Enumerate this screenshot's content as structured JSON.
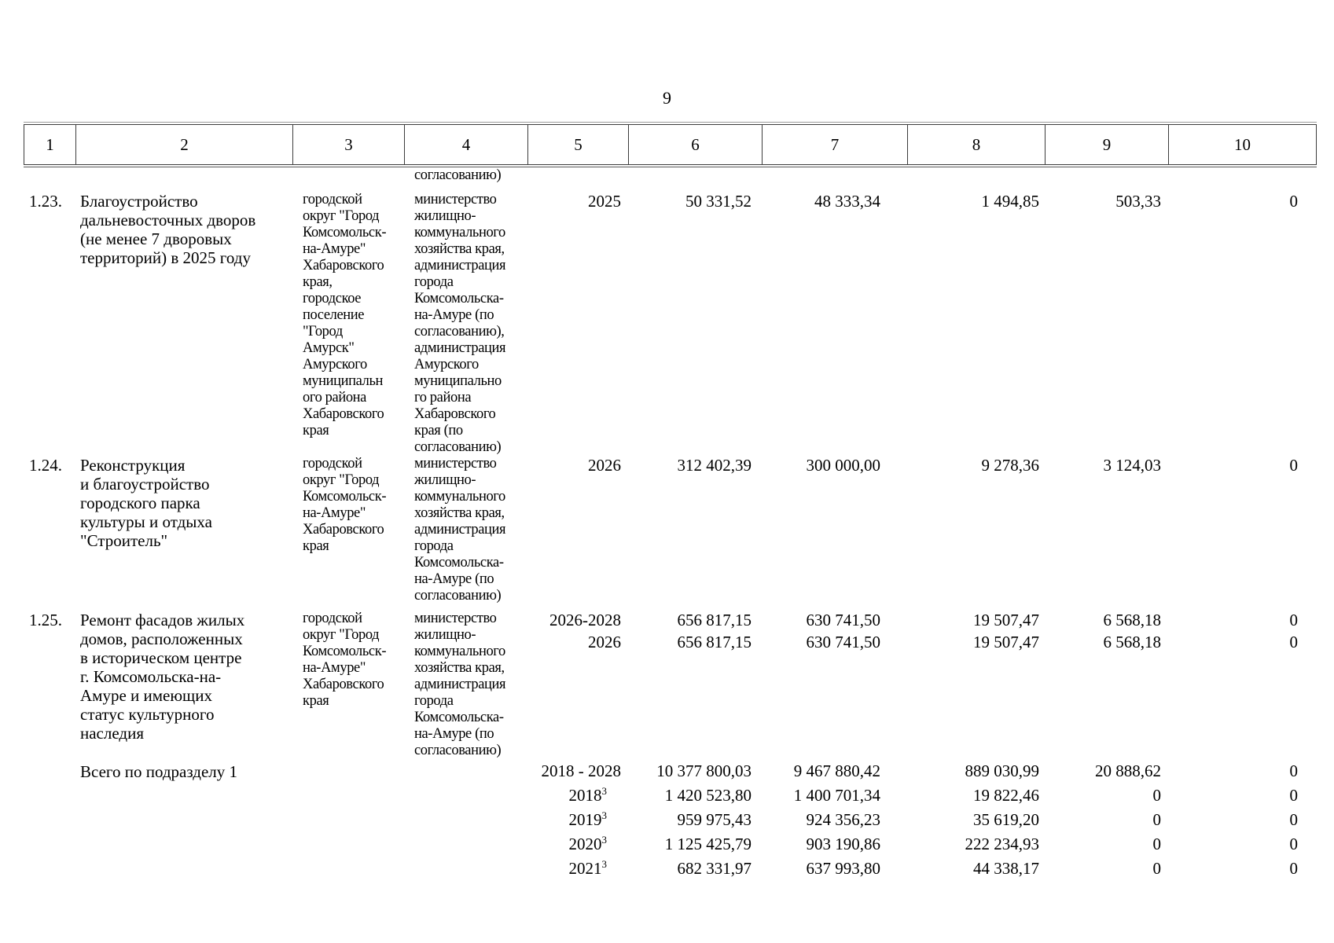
{
  "page_number": "9",
  "table": {
    "header_cols": [
      "1",
      "2",
      "3",
      "4",
      "5",
      "6",
      "7",
      "8",
      "9",
      "10"
    ],
    "continuation_text": "согласованию)",
    "rows": [
      {
        "num": "1.23.",
        "name": "Благоустройство\nдальневосточных дворов\n(не менее 7 дворовых\nтерриторий) в 2025 году",
        "territory": "городской\nокруг \"Город\nКомсомольск-\nна-Амуре\"\nХабаровского\nкрая,\nгородское\nпоселение\n\"Город\nАмурск\"\nАмурского\nмуниципальн\nого района\nХабаровского\nкрая",
        "executors": "министерство\nжилищно-\nкоммунального\nхозяйства края,\nадминистрация\nгорода\nКомсомольска-\nна-Амуре (по\nсогласованию),\nадминистрация\nАмурского\nмуниципально\nго района\nХабаровского\nкрая (по\nсогласованию)",
        "periods": [
          {
            "years": "2025",
            "total": "50 331,52",
            "federal": "48 333,34",
            "regional": "1 494,85",
            "local": "503,33",
            "other": "0"
          }
        ]
      },
      {
        "num": "1.24.",
        "name": "Реконструкция\nи благоустройство\nгородского парка\nкультуры и отдыха\n\"Строитель\"",
        "territory": "городской\nокруг \"Город\nКомсомольск-\nна-Амуре\"\nХабаровского\nкрая",
        "executors": "министерство\nжилищно-\nкоммунального\nхозяйства края,\nадминистрация\nгорода\nКомсомольска-\nна-Амуре (по\nсогласованию)",
        "periods": [
          {
            "years": "2026",
            "total": "312 402,39",
            "federal": "300 000,00",
            "regional": "9 278,36",
            "local": "3 124,03",
            "other": "0"
          }
        ]
      },
      {
        "num": "1.25.",
        "name": "Ремонт фасадов жилых\nдомов, расположенных\nв историческом центре\nг. Комсомольска-на-\nАмуре и имеющих\nстатус культурного\nнаследия",
        "territory": "городской\nокруг \"Город\nКомсомольск-\nна-Амуре\"\nХабаровского\nкрая",
        "executors": "министерство\nжилищно-\nкоммунального\nхозяйства края,\nадминистрация\nгорода\nКомсомольска-\nна-Амуре (по\nсогласованию)",
        "periods": [
          {
            "years": "2026-2028",
            "total": "656 817,15",
            "federal": "630 741,50",
            "regional": "19 507,47",
            "local": "6 568,18",
            "other": "0"
          },
          {
            "years": "2026",
            "total": "656 817,15",
            "federal": "630 741,50",
            "regional": "19 507,47",
            "local": "6 568,18",
            "other": "0"
          }
        ]
      }
    ],
    "subtotal": {
      "label": "Всего по подразделу 1",
      "periods": [
        {
          "years": "2018 - 2028",
          "sup": "",
          "total": "10 377 800,03",
          "federal": "9 467 880,42",
          "regional": "889 030,99",
          "local": "20 888,62",
          "other": "0"
        },
        {
          "years": "2018",
          "sup": "3",
          "total": "1 420 523,80",
          "federal": "1 400 701,34",
          "regional": "19 822,46",
          "local": "0",
          "other": "0"
        },
        {
          "years": "2019",
          "sup": "3",
          "total": "959 975,43",
          "federal": "924 356,23",
          "regional": "35 619,20",
          "local": "0",
          "other": "0"
        },
        {
          "years": "2020",
          "sup": "3",
          "total": "1 125 425,79",
          "federal": "903 190,86",
          "regional": "222 234,93",
          "local": "0",
          "other": "0"
        },
        {
          "years": "2021",
          "sup": "3",
          "total": "682 331,97",
          "federal": "637 993,80",
          "regional": "44 338,17",
          "local": "0",
          "other": "0"
        }
      ]
    }
  }
}
